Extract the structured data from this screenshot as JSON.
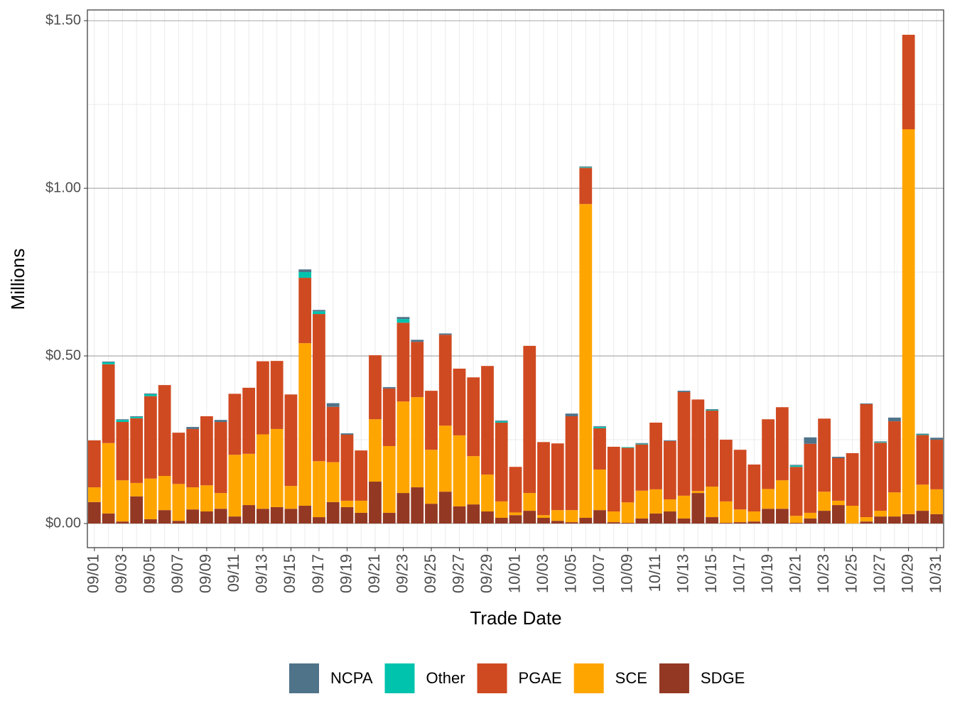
{
  "chart_data": {
    "type": "stacked_bar",
    "x_label": "Trade Date",
    "y_label": "Millions",
    "categories": [
      "09/01",
      null,
      "09/03",
      null,
      "09/05",
      null,
      "09/07",
      null,
      "09/09",
      null,
      "09/11",
      null,
      "09/13",
      null,
      "09/15",
      null,
      "09/17",
      null,
      "09/19",
      null,
      "09/21",
      null,
      "09/23",
      null,
      "09/25",
      null,
      "09/27",
      null,
      "09/29",
      null,
      "10/01",
      null,
      "10/03",
      null,
      "10/05",
      null,
      "10/07",
      null,
      "10/09",
      null,
      "10/11",
      null,
      "10/13",
      null,
      "10/15",
      null,
      "10/17",
      null,
      "10/19",
      null,
      "10/21",
      null,
      "10/23",
      null,
      "10/25",
      null,
      "10/27",
      null,
      "10/29",
      null,
      "10/31"
    ],
    "series": [
      {
        "name": "NCPA",
        "color": "#4f7389",
        "values": [
          0,
          0.002,
          0.002,
          0.002,
          0.002,
          0,
          0,
          0.006,
          0,
          0.006,
          0,
          0,
          0,
          0,
          0,
          0.008,
          0.004,
          0.011,
          0.004,
          0,
          0,
          0.004,
          0.006,
          0.006,
          0,
          0.004,
          0,
          0,
          0,
          0.002,
          0,
          0,
          0,
          0,
          0.008,
          0.002,
          0.002,
          0,
          0,
          0.002,
          0,
          0.002,
          0.004,
          0,
          0.002,
          0,
          0,
          0,
          0,
          0,
          0.002,
          0.019,
          0,
          0.004,
          0,
          0.002,
          0.002,
          0.011,
          0,
          0.002,
          0.006
        ]
      },
      {
        "name": "Other",
        "color": "#00c3ae",
        "values": [
          0,
          0.006,
          0.006,
          0.004,
          0.006,
          0,
          0,
          0,
          0,
          0,
          0,
          0,
          0,
          0,
          0,
          0.017,
          0.008,
          0,
          0,
          0,
          0,
          0,
          0.011,
          0,
          0,
          0,
          0,
          0,
          0,
          0.004,
          0,
          0,
          0,
          0,
          0,
          0.002,
          0.004,
          0,
          0.002,
          0.002,
          0,
          0,
          0,
          0,
          0.002,
          0,
          0,
          0,
          0,
          0,
          0.004,
          0,
          0,
          0,
          0,
          0,
          0.002,
          0,
          0,
          0.002,
          0
        ]
      },
      {
        "name": "PGAE",
        "color": "#d04a21",
        "values": [
          0.14,
          0.235,
          0.174,
          0.193,
          0.246,
          0.271,
          0.153,
          0.174,
          0.206,
          0.212,
          0.182,
          0.197,
          0.218,
          0.203,
          0.273,
          0.195,
          0.439,
          0.165,
          0.197,
          0.15,
          0.191,
          0.172,
          0.235,
          0.165,
          0.176,
          0.271,
          0.199,
          0.235,
          0.324,
          0.235,
          0.136,
          0.439,
          0.218,
          0.199,
          0.28,
          0.108,
          0.123,
          0.193,
          0.163,
          0.138,
          0.199,
          0.174,
          0.309,
          0.273,
          0.227,
          0.184,
          0.178,
          0.14,
          0.208,
          0.218,
          0.146,
          0.206,
          0.218,
          0.127,
          0.157,
          0.337,
          0.203,
          0.212,
          0.282,
          0.148,
          0.148
        ]
      },
      {
        "name": "SCE",
        "color": "#ffa500",
        "values": [
          0.044,
          0.21,
          0.123,
          0.04,
          0.121,
          0.102,
          0.11,
          0.066,
          0.078,
          0.047,
          0.184,
          0.153,
          0.222,
          0.233,
          0.068,
          0.485,
          0.167,
          0.119,
          0.019,
          0.036,
          0.186,
          0.199,
          0.273,
          0.269,
          0.161,
          0.197,
          0.212,
          0.144,
          0.11,
          0.049,
          0.008,
          0.053,
          0.008,
          0.032,
          0.036,
          0.936,
          0.121,
          0.032,
          0.061,
          0.083,
          0.072,
          0.036,
          0.068,
          0.006,
          0.091,
          0.064,
          0.038,
          0.03,
          0.059,
          0.085,
          0.021,
          0.017,
          0.057,
          0.013,
          0.053,
          0.013,
          0.017,
          0.072,
          1.148,
          0.078,
          0.074
        ]
      },
      {
        "name": "SDGE",
        "color": "#933823",
        "values": [
          0.064,
          0.03,
          0.006,
          0.081,
          0.013,
          0.04,
          0.008,
          0.042,
          0.036,
          0.044,
          0.021,
          0.055,
          0.044,
          0.049,
          0.044,
          0.053,
          0.019,
          0.064,
          0.049,
          0.032,
          0.125,
          0.032,
          0.091,
          0.108,
          0.059,
          0.095,
          0.051,
          0.057,
          0.036,
          0.017,
          0.025,
          0.038,
          0.017,
          0.008,
          0.004,
          0.017,
          0.04,
          0.004,
          0.002,
          0.015,
          0.03,
          0.036,
          0.015,
          0.091,
          0.019,
          0.002,
          0.004,
          0.006,
          0.044,
          0.044,
          0.002,
          0.015,
          0.038,
          0.055,
          0,
          0.006,
          0.021,
          0.021,
          0.028,
          0.038,
          0.028
        ]
      }
    ],
    "ylim": [
      -0.072,
      1.532
    ],
    "yticks": [
      {
        "value": 0,
        "label": "$0.00"
      },
      {
        "value": 0.5,
        "label": "$0.50"
      },
      {
        "value": 1,
        "label": "$1.00"
      },
      {
        "value": 1.5,
        "label": "$1.50"
      }
    ],
    "grid": true,
    "legend": "bottom"
  }
}
